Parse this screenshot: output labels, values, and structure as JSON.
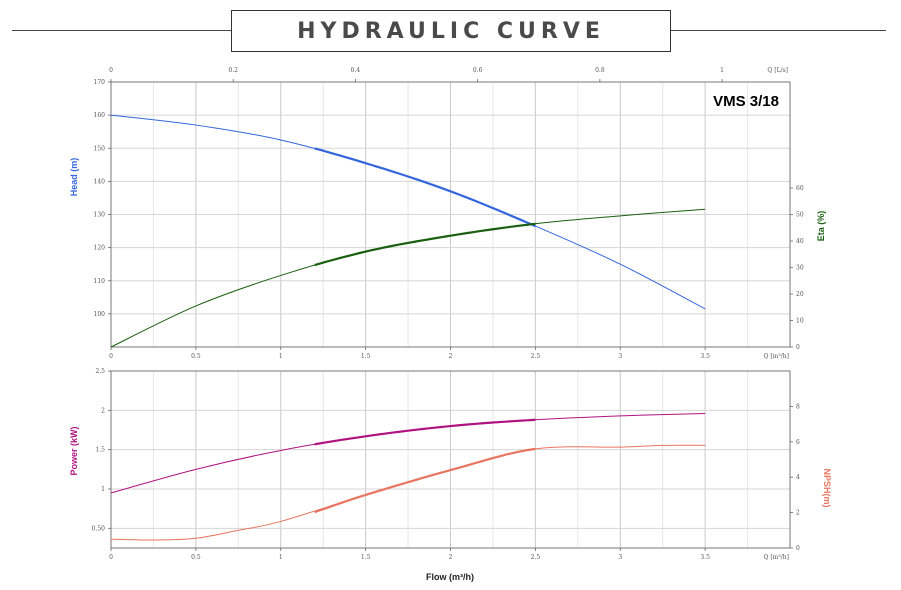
{
  "title": "HYDRAULIC CURVE",
  "model": "VMS 3/18",
  "colors": {
    "head": "#3366dd",
    "eta": "#1a5e10",
    "power": "#b0137f",
    "npsh": "#e9745f",
    "grid": "#d6d6d6",
    "frame": "#777777"
  },
  "top_axis": {
    "label": "Q [L/s]",
    "ticks": [
      "0",
      "0.2",
      "0.4",
      "0.6",
      "0.8",
      "1"
    ]
  },
  "chart_data": [
    {
      "type": "line",
      "name": "head-eta",
      "x_label": "Q [m³/h]",
      "x_ticks": [
        "0",
        "0.5",
        "1",
        "1.5",
        "2",
        "2.5",
        "3",
        "3.5"
      ],
      "xlim": [
        0,
        4
      ],
      "y_left": {
        "label": "Head (m)",
        "lim": [
          90,
          170
        ],
        "ticks": [
          "100",
          "110",
          "120",
          "130",
          "140",
          "150",
          "160",
          "170"
        ]
      },
      "y_right": {
        "label": "Eta (%)",
        "lim": [
          0,
          100
        ],
        "ticks": [
          "0",
          "10",
          "20",
          "30",
          "40",
          "50",
          "60"
        ]
      },
      "series": [
        {
          "name": "Head (m)",
          "axis": "left",
          "x": [
            0,
            0.5,
            1,
            1.5,
            2,
            2.5,
            3,
            3.5
          ],
          "y": [
            160,
            157,
            152.5,
            145.5,
            137,
            126.5,
            115,
            101.5
          ],
          "bold_range": [
            1.2,
            2.5
          ]
        },
        {
          "name": "Eta (%)",
          "axis": "right",
          "x": [
            0,
            0.5,
            1,
            1.5,
            2,
            2.5,
            3,
            3.5
          ],
          "y": [
            0,
            15.5,
            27,
            36,
            42,
            46.5,
            49.5,
            52
          ],
          "bold_range": [
            1.2,
            2.5
          ]
        }
      ]
    },
    {
      "type": "line",
      "name": "power-npsh",
      "x_label": "Q [m³/h]",
      "x_ticks": [
        "0",
        "0.5",
        "1",
        "1.5",
        "2",
        "2.5",
        "3",
        "3.5"
      ],
      "xlim": [
        0,
        4
      ],
      "y_left": {
        "label": "Power (kW)",
        "lim": [
          0.25,
          2.5
        ],
        "ticks": [
          "0.50",
          "1",
          "1.5",
          "2",
          "2.5"
        ]
      },
      "y_right": {
        "label": "NPSH(m)",
        "lim": [
          0,
          10
        ],
        "ticks": [
          "0",
          "2",
          "4",
          "6",
          "8"
        ]
      },
      "series": [
        {
          "name": "Power (kW)",
          "axis": "left",
          "x": [
            0,
            0.5,
            1,
            1.5,
            2,
            2.5,
            3,
            3.5
          ],
          "y": [
            0.95,
            1.25,
            1.49,
            1.67,
            1.8,
            1.88,
            1.93,
            1.96
          ],
          "bold_range": [
            1.2,
            2.5
          ]
        },
        {
          "name": "NPSH(m)",
          "axis": "right",
          "x": [
            0,
            0.25,
            0.5,
            0.75,
            1,
            1.5,
            2,
            2.5,
            3,
            3.25,
            3.5
          ],
          "y": [
            0.5,
            0.45,
            0.55,
            1.0,
            1.5,
            3.0,
            4.4,
            5.6,
            5.7,
            5.8,
            5.8
          ],
          "bold_range": [
            1.2,
            2.5
          ]
        }
      ]
    }
  ],
  "x_axis_title": "Flow (m³/h)"
}
